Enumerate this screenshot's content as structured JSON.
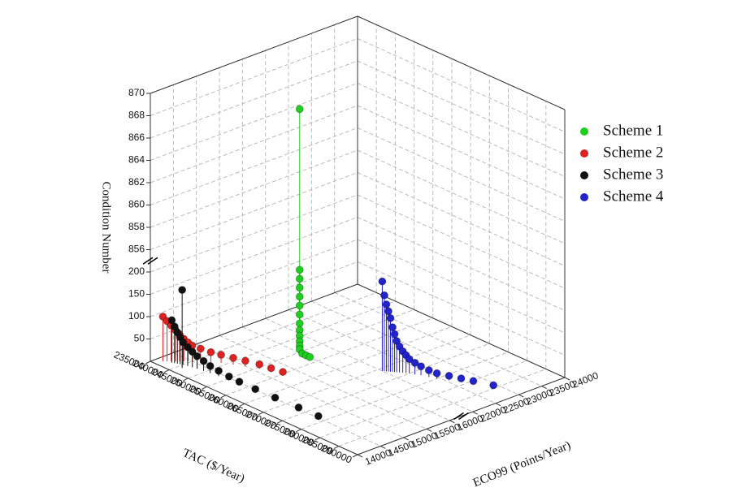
{
  "chart_data": {
    "type": "scatter3d",
    "x_label": "TAC ($/Year)",
    "y_label": "ECO99 (Points/Year)",
    "z_label": "Condition Number",
    "xlim": [
      235000,
      290000
    ],
    "xticks": [
      235000,
      240000,
      245000,
      250000,
      255000,
      260000,
      265000,
      270000,
      275000,
      280000,
      285000,
      290000
    ],
    "ylim": [
      14000,
      24000
    ],
    "yticks": [
      14000,
      14500,
      15000,
      15500,
      16000,
      22000,
      22500,
      23000,
      23500,
      24000
    ],
    "zlim": [
      0,
      870
    ],
    "zticks": [
      50,
      100,
      150,
      200,
      856,
      858,
      860,
      862,
      864,
      866,
      868,
      870
    ],
    "grid": true,
    "legend": "right",
    "series": [
      {
        "name": "Scheme 1",
        "color": "#1fcf1f",
        "x": [
          250800,
          250800,
          250800,
          250800,
          250800,
          250800,
          250800,
          250800,
          250800,
          250800,
          250800,
          250800,
          250800,
          251500,
          252500,
          253500
        ],
        "y": [
          15950,
          15950,
          15950,
          15950,
          15950,
          15950,
          15950,
          15950,
          15950,
          15950,
          15950,
          15950,
          15950,
          15950,
          15950,
          15950
        ],
        "z": [
          868,
          190,
          170,
          150,
          130,
          110,
          90,
          70,
          55,
          42,
          30,
          20,
          12,
          5,
          5,
          5
        ]
      },
      {
        "name": "Scheme 2",
        "color": "#dd2222",
        "x": [
          236500,
          237000,
          237500,
          238000,
          238500,
          239000,
          239500,
          240000,
          241000,
          242500,
          244000,
          246000,
          248000,
          250500,
          253000,
          255500
        ],
        "y": [
          14150,
          14200,
          14250,
          14300,
          14350,
          14400,
          14450,
          14500,
          14600,
          14700,
          14800,
          14900,
          15000,
          15100,
          15150,
          15200
        ],
        "z": [
          100,
          90,
          80,
          70,
          60,
          50,
          42,
          35,
          28,
          22,
          18,
          15,
          12,
          10,
          9,
          8
        ]
      },
      {
        "name": "Scheme 3",
        "color": "#111111",
        "x": [
          241000,
          238000,
          238500,
          239000,
          239500,
          240000,
          241000,
          242000,
          243000,
          244500,
          246000,
          248000,
          250500,
          253000,
          257000,
          262000,
          268000,
          273000
        ],
        "y": [
          14200,
          14220,
          14240,
          14260,
          14280,
          14300,
          14320,
          14340,
          14360,
          14380,
          14400,
          14420,
          14440,
          14460,
          14480,
          14500,
          14520,
          14540
        ],
        "z": [
          175,
          95,
          82,
          70,
          60,
          50,
          42,
          35,
          28,
          22,
          16,
          12,
          8,
          5,
          3,
          2,
          2,
          1
        ]
      },
      {
        "name": "Scheme 4",
        "color": "#2323cc",
        "x": [
          266000,
          266300,
          266600,
          266900,
          267200,
          267500,
          267800,
          268100,
          268500,
          269000,
          269500,
          270000,
          271000,
          272000,
          273500,
          275000,
          277000,
          279000,
          281000,
          284500
        ],
        "y": [
          22000,
          22020,
          22040,
          22060,
          22080,
          22100,
          22120,
          22140,
          22170,
          22200,
          22230,
          22260,
          22300,
          22350,
          22400,
          22450,
          22550,
          22650,
          22750,
          22900
        ],
        "z": [
          210,
          170,
          150,
          135,
          120,
          100,
          85,
          70,
          58,
          48,
          40,
          32,
          26,
          20,
          15,
          12,
          10,
          8,
          6,
          4
        ]
      }
    ]
  }
}
